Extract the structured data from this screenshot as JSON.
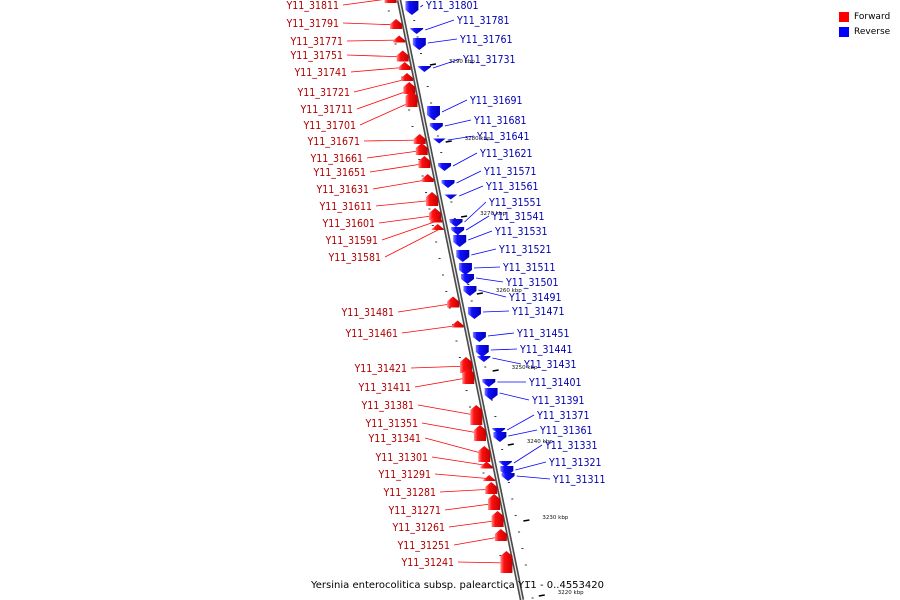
{
  "legend": {
    "forward_label": "Forward",
    "reverse_label": "Reverse",
    "forward_color": "#ff0000",
    "reverse_color": "#0000ff"
  },
  "caption": "Yersinia enterocolitica subsp. palearctica Y11 - 0..4553420",
  "ticks": [
    "3290 kbp",
    "3280 kbp",
    "3270 kbp",
    "3260 kbp",
    "3250 kbp",
    "3240 kbp",
    "3230 kbp",
    "3220 kbp"
  ],
  "forward_genes": [
    "Y11_31811",
    "Y11_31791",
    "Y11_31771",
    "Y11_31751",
    "Y11_31741",
    "Y11_31721",
    "Y11_31711",
    "Y11_31701",
    "Y11_31671",
    "Y11_31661",
    "Y11_31651",
    "Y11_31631",
    "Y11_31611",
    "Y11_31601",
    "Y11_31591",
    "Y11_31581",
    "Y11_31481",
    "Y11_31461",
    "Y11_31421",
    "Y11_31411",
    "Y11_31381",
    "Y11_31351",
    "Y11_31341",
    "Y11_31301",
    "Y11_31291",
    "Y11_31281",
    "Y11_31271",
    "Y11_31261",
    "Y11_31251",
    "Y11_31241"
  ],
  "reverse_genes": [
    "Y11_31801",
    "Y11_31781",
    "Y11_31761",
    "Y11_31731",
    "Y11_31691",
    "Y11_31681",
    "Y11_31641",
    "Y11_31621",
    "Y11_31571",
    "Y11_31561",
    "Y11_31551",
    "Y11_31541",
    "Y11_31531",
    "Y11_31521",
    "Y11_31511",
    "Y11_31501",
    "Y11_31491",
    "Y11_31471",
    "Y11_31451",
    "Y11_31441",
    "Y11_31431",
    "Y11_31401",
    "Y11_31391",
    "Y11_31371",
    "Y11_31361",
    "Y11_31331",
    "Y11_31321",
    "Y11_31311"
  ]
}
